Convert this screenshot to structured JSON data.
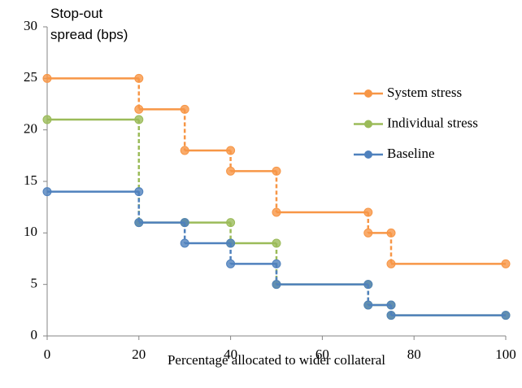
{
  "chart_data": {
    "type": "step",
    "y_label": "Stop-out spread (bps)",
    "x_label": "Percentage allocated to wider collateral",
    "x": [
      0,
      20,
      20,
      30,
      30,
      40,
      40,
      50,
      50,
      70,
      70,
      75,
      75,
      100
    ],
    "series": [
      {
        "name": "System stress",
        "color": "#f79646",
        "values": [
          25,
          25,
          22,
          22,
          18,
          18,
          16,
          16,
          12,
          12,
          10,
          10,
          7,
          7
        ]
      },
      {
        "name": "Individual stress",
        "color": "#9bbb59",
        "values": [
          21,
          21,
          11,
          11,
          11,
          11,
          9,
          9,
          5,
          5,
          3,
          3,
          2,
          2
        ]
      },
      {
        "name": "Baseline",
        "color": "#4f81bd",
        "values": [
          14,
          14,
          11,
          11,
          9,
          9,
          7,
          7,
          5,
          5,
          3,
          3,
          2,
          2
        ]
      }
    ],
    "xlim": [
      0,
      100
    ],
    "xticks": [
      0,
      20,
      40,
      60,
      80,
      100
    ],
    "ylim": [
      0,
      30
    ],
    "yticks": [
      0,
      5,
      10,
      15,
      20,
      25,
      30
    ],
    "legend": "right"
  }
}
